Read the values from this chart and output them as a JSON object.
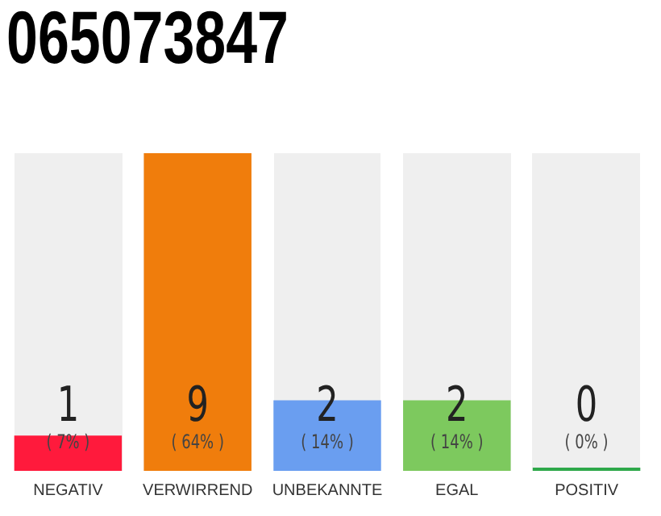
{
  "chart_data": {
    "type": "bar",
    "title": "065073847",
    "categories": [
      "NEGATIV",
      "VERWIRREND",
      "UNBEKANNTE",
      "EGAL",
      "POSITIV"
    ],
    "values": [
      1,
      9,
      2,
      2,
      0
    ],
    "colors": [
      "#ff1a3c",
      "#f07d0c",
      "#6a9ef0",
      "#7dc95e",
      "#2ea84a"
    ],
    "annotations": [
      "( 7% )",
      "( 64% )",
      "( 14% )",
      "( 14% )",
      "( 0% )"
    ],
    "data_labels": true,
    "tick_labels": "x",
    "grid": false,
    "legend": false
  }
}
